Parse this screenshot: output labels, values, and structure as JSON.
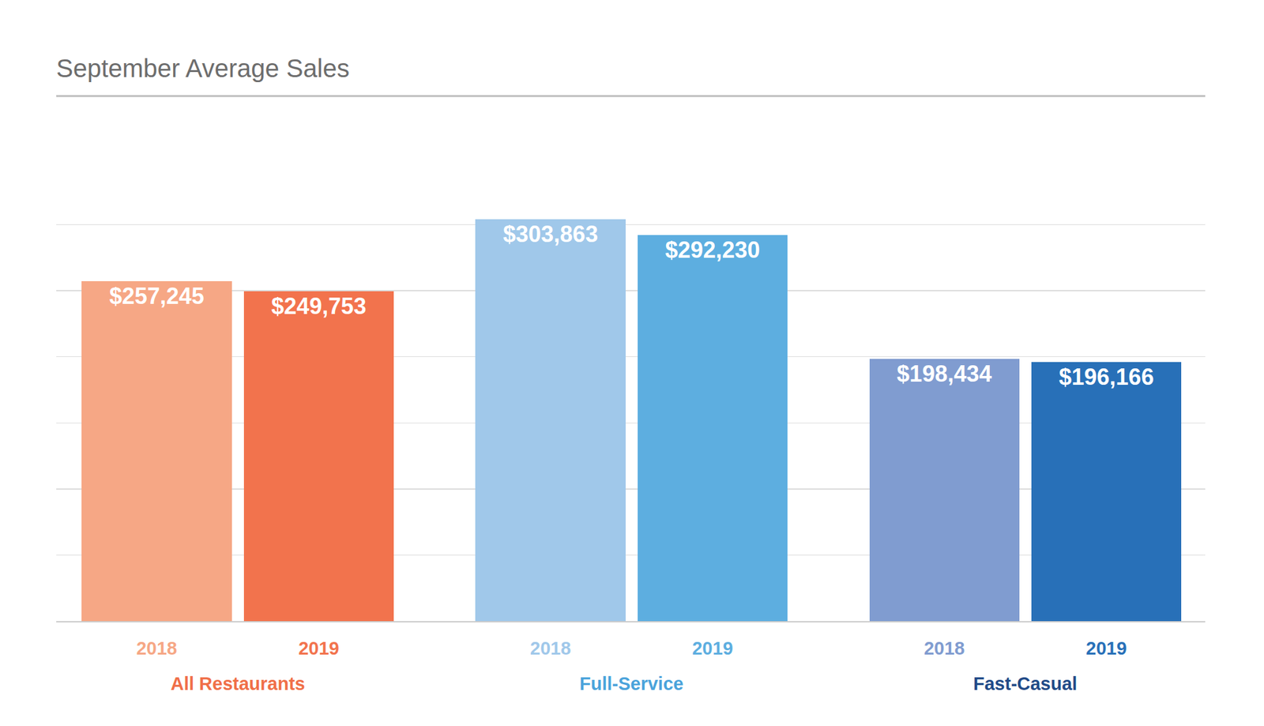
{
  "chart_data": {
    "type": "bar",
    "title": "September Average Sales",
    "groups": [
      {
        "name": "All Restaurants",
        "color": "#f06f48",
        "categories": [
          "2018",
          "2019"
        ],
        "values": [
          257245,
          249753
        ],
        "value_labels": [
          "$257,245",
          "$249,753"
        ],
        "colors": [
          "#f6a785",
          "#f2734d"
        ]
      },
      {
        "name": "Full-Service",
        "color": "#4aa3db",
        "categories": [
          "2018",
          "2019"
        ],
        "values": [
          303863,
          292230
        ],
        "value_labels": [
          "$303,863",
          "$292,230"
        ],
        "colors": [
          "#a0c8ea",
          "#5daee0"
        ]
      },
      {
        "name": "Fast-Casual",
        "color": "#1f4a87",
        "categories": [
          "2018",
          "2019"
        ],
        "values": [
          198434,
          196166
        ],
        "value_labels": [
          "$198,434",
          "$196,166"
        ],
        "colors": [
          "#809cd0",
          "#2870b8"
        ]
      }
    ],
    "ylim": [
      0,
      350000
    ],
    "yticks": [
      0,
      50000,
      100000,
      150000,
      200000,
      250000,
      300000,
      350000
    ],
    "grid": true,
    "data_labels": true,
    "tick_labels": "x"
  }
}
